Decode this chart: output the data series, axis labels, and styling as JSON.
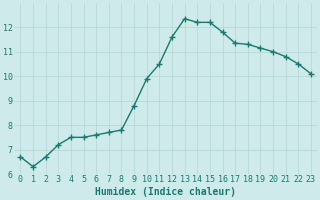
{
  "title": "",
  "xlabel": "Humidex (Indice chaleur)",
  "ylabel": "",
  "x": [
    0,
    1,
    2,
    3,
    4,
    5,
    6,
    7,
    8,
    9,
    10,
    11,
    12,
    13,
    14,
    15,
    16,
    17,
    18,
    19,
    20,
    21,
    22,
    23
  ],
  "y": [
    6.7,
    6.3,
    6.7,
    7.2,
    7.5,
    7.5,
    7.6,
    7.7,
    7.8,
    8.8,
    9.9,
    10.5,
    11.6,
    12.35,
    12.2,
    12.2,
    11.8,
    11.35,
    11.3,
    11.15,
    11.0,
    10.8,
    10.5,
    10.1
  ],
  "line_color": "#1a7a6e",
  "bg_color": "#ceeaea",
  "grid_color": "#b8d8d8",
  "tick_color": "#1a7a6e",
  "label_color": "#1a7a6e",
  "ylim": [
    6,
    13
  ],
  "xlim_min": -0.5,
  "xlim_max": 23.5,
  "yticks": [
    6,
    7,
    8,
    9,
    10,
    11,
    12
  ],
  "xticks": [
    0,
    1,
    2,
    3,
    4,
    5,
    6,
    7,
    8,
    9,
    10,
    11,
    12,
    13,
    14,
    15,
    16,
    17,
    18,
    19,
    20,
    21,
    22,
    23
  ],
  "marker": "+",
  "markersize": 4,
  "linewidth": 1.0,
  "xlabel_fontsize": 7,
  "tick_fontsize": 6,
  "font_family": "monospace"
}
